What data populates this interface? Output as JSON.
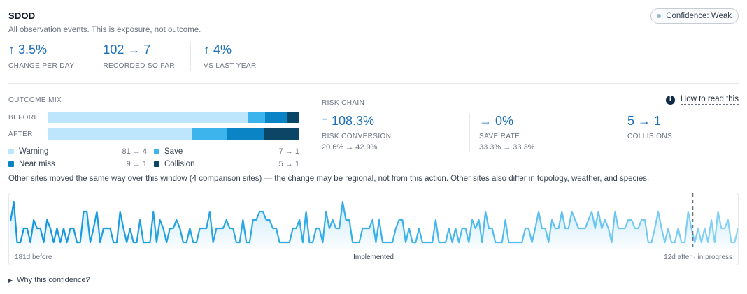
{
  "header": {
    "title": "SDOD",
    "subtitle": "All observation events. This is exposure, not outcome.",
    "confidence_badge": "Confidence: Weak"
  },
  "metrics": [
    {
      "value": "↑ 3.5%",
      "label": "CHANGE PER DAY"
    },
    {
      "value": "102 → 7",
      "label": "RECORDED SO FAR"
    },
    {
      "value": "↑ 4%",
      "label": "VS LAST YEAR"
    }
  ],
  "outcome_mix": {
    "title": "OUTCOME MIX",
    "before_label": "BEFORE",
    "after_label": "AFTER",
    "colors": {
      "Warning": "#bde5fb",
      "Save": "#3db4ec",
      "Near miss": "#0b84c6",
      "Collision": "#0c4667"
    },
    "before": {
      "Warning": 81,
      "Save": 7,
      "Near miss": 9,
      "Collision": 5
    },
    "after": {
      "Warning": 4,
      "Save": 1,
      "Near miss": 1,
      "Collision": 1
    },
    "legend": [
      {
        "name": "Warning",
        "counts": "81 → 4",
        "color": "#bde5fb"
      },
      {
        "name": "Save",
        "counts": "7 → 1",
        "color": "#3db4ec"
      },
      {
        "name": "Near miss",
        "counts": "9 → 1",
        "color": "#0b84c6"
      },
      {
        "name": "Collision",
        "counts": "5 → 1",
        "color": "#0c4667"
      }
    ]
  },
  "risk_chain": {
    "title": "RISK CHAIN",
    "how_to_read": "How to read this",
    "metrics": [
      {
        "value": "↑ 108.3%",
        "label": "RISK CONVERSION",
        "sub": "20.6% → 42.9%"
      },
      {
        "value": "→ 0%",
        "label": "SAVE RATE",
        "sub": "33.3% → 33.3%"
      },
      {
        "value": "5 → 1",
        "label": "COLLISIONS",
        "sub": ""
      }
    ]
  },
  "note": "Other sites moved the same way over this window (4 comparison sites) — the change may be regional, not from this action. Other sites also differ in topology, weather, and species.",
  "timeline": {
    "left_label": "181d before",
    "center_label": "Implemented",
    "right_label": "12d after · in progress",
    "days_before": 181,
    "days_after": 12,
    "colors": {
      "before": "#1aa3e6",
      "after": "#7dcdf3",
      "marker": "#6b7280"
    }
  },
  "footer": {
    "why_label": "Why this confidence?"
  }
}
